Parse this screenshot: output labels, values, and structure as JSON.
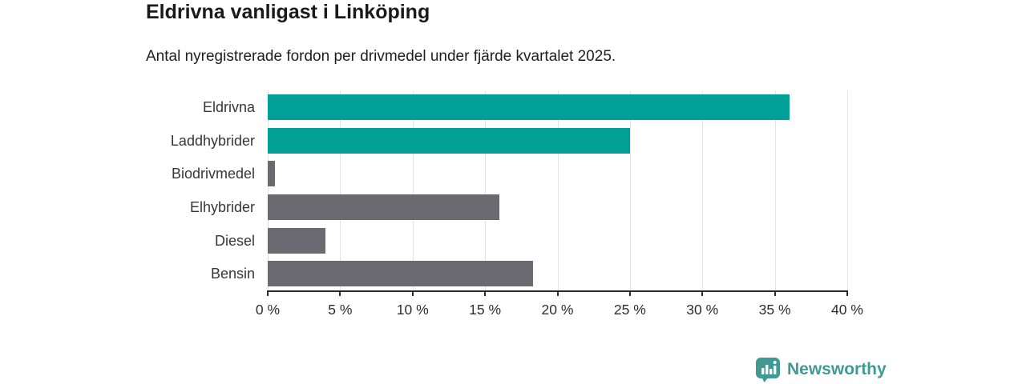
{
  "header": {
    "title": "Eldrivna vanligast i Linköping",
    "subtitle": "Antal nyregistrerade fordon per drivmedel under fjärde kvartalet 2025."
  },
  "chart_data": {
    "type": "bar",
    "orientation": "horizontal",
    "title": "Eldrivna vanligast i Linköping",
    "subtitle": "Antal nyregistrerade fordon per drivmedel under fjärde kvartalet 2025.",
    "categories": [
      "Eldrivna",
      "Laddhybrider",
      "Biodrivmedel",
      "Elhybrider",
      "Diesel",
      "Bensin"
    ],
    "values": [
      36,
      25,
      0.5,
      16,
      4,
      18.3
    ],
    "unit": "%",
    "bar_colors": [
      "#00a096",
      "#00a096",
      "#6b6a70",
      "#6b6a70",
      "#6b6a70",
      "#6b6a70"
    ],
    "xlim": [
      0,
      40
    ],
    "x_ticks": [
      {
        "value": 0,
        "label": "0 %"
      },
      {
        "value": 5,
        "label": "5 %"
      },
      {
        "value": 10,
        "label": "10 %"
      },
      {
        "value": 15,
        "label": "15 %"
      },
      {
        "value": 20,
        "label": "20 %"
      },
      {
        "value": 25,
        "label": "25 %"
      },
      {
        "value": 30,
        "label": "30 %"
      },
      {
        "value": 35,
        "label": "35 %"
      },
      {
        "value": 40,
        "label": "40 %"
      }
    ],
    "grid": "vertical",
    "legend": "none",
    "xlabel": "",
    "ylabel": ""
  },
  "colors": {
    "accent_teal": "#00a096",
    "neutral_gray": "#6b6a70",
    "gridline": "#e4e4e4",
    "axis": "#2b2b2b",
    "text": "#1a1a1a",
    "brand": "#3f9a94"
  },
  "footer": {
    "brand": "Newsworthy"
  }
}
